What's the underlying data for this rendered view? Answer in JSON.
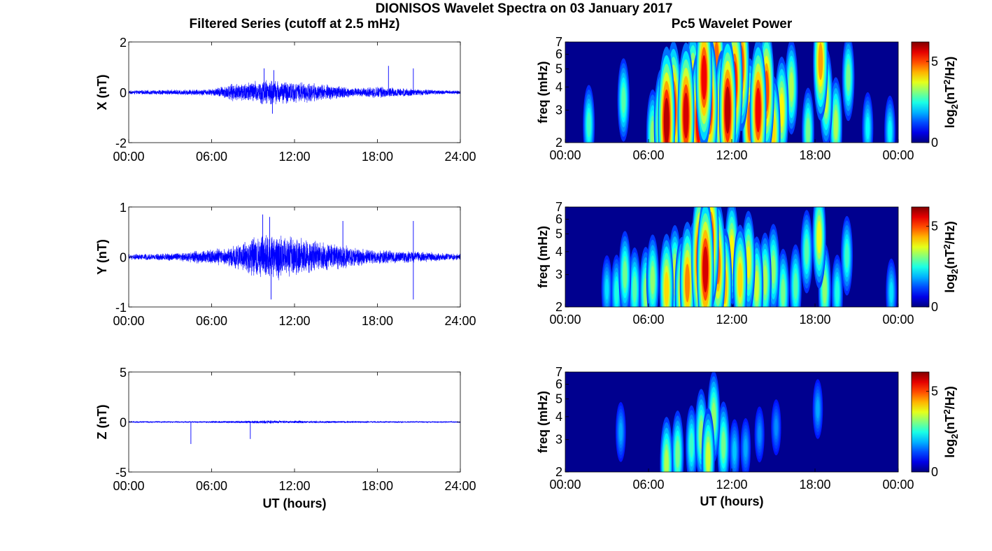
{
  "figure": {
    "title": "DIONISOS Wavelet Spectra on 03 January 2017",
    "left_title": "Filtered Series (cutoff at 2.5 mHz)",
    "right_title": "Pc5 Wavelet Power"
  },
  "colors": {
    "trace": "#0000ff",
    "axis": "#000000",
    "colormap": "jet",
    "background": "#00008f"
  },
  "chart_data": [
    {
      "type": "line",
      "id": "x-series",
      "title": "",
      "ylabel": "X (nT)",
      "xlabel": "",
      "ylim": [
        -2,
        2
      ],
      "yticks": [
        "-2",
        "0",
        "2"
      ],
      "xlim": [
        0,
        24
      ],
      "xticks": [
        "00:00",
        "06:00",
        "12:00",
        "18:00",
        "24:00"
      ],
      "series": [
        {
          "color": "#0000ff",
          "envelope": {
            "t": [
              0,
              2,
              4,
              6,
              7,
              8,
              9,
              10,
              11,
              12,
              13,
              14,
              15,
              16,
              17,
              18,
              19,
              20,
              21,
              22,
              23,
              24
            ],
            "amplitude": [
              0.08,
              0.1,
              0.12,
              0.14,
              0.3,
              0.42,
              0.48,
              0.55,
              0.5,
              0.45,
              0.42,
              0.35,
              0.3,
              0.22,
              0.18,
              0.25,
              0.2,
              0.18,
              0.15,
              0.1,
              0.09,
              0.08
            ]
          },
          "spikes": [
            {
              "t": 9.8,
              "y": 0.95
            },
            {
              "t": 10.5,
              "y": 0.88
            },
            {
              "t": 18.8,
              "y": 1.05
            },
            {
              "t": 20.6,
              "y": 0.95
            },
            {
              "t": 10.4,
              "y": -0.85
            }
          ]
        }
      ]
    },
    {
      "type": "line",
      "id": "y-series",
      "title": "",
      "ylabel": "Y (nT)",
      "xlabel": "",
      "ylim": [
        -1,
        1
      ],
      "yticks": [
        "-1",
        "0",
        "1"
      ],
      "xlim": [
        0,
        24
      ],
      "xticks": [
        "00:00",
        "06:00",
        "12:00",
        "18:00",
        "24:00"
      ],
      "series": [
        {
          "color": "#0000ff",
          "envelope": {
            "t": [
              0,
              2,
              4,
              5,
              6,
              7,
              8,
              9,
              10,
              11,
              12,
              13,
              14,
              15,
              16,
              17,
              18,
              19,
              20,
              21,
              22,
              23,
              24
            ],
            "amplitude": [
              0.06,
              0.07,
              0.1,
              0.14,
              0.16,
              0.2,
              0.28,
              0.4,
              0.5,
              0.48,
              0.42,
              0.36,
              0.32,
              0.28,
              0.22,
              0.18,
              0.15,
              0.14,
              0.13,
              0.12,
              0.1,
              0.08,
              0.07
            ]
          },
          "spikes": [
            {
              "t": 9.7,
              "y": 0.85
            },
            {
              "t": 10.2,
              "y": 0.8
            },
            {
              "t": 10.3,
              "y": -0.85
            },
            {
              "t": 15.5,
              "y": 0.72
            },
            {
              "t": 20.6,
              "y": 0.72
            },
            {
              "t": 20.6,
              "y": -0.85
            }
          ]
        }
      ]
    },
    {
      "type": "line",
      "id": "z-series",
      "title": "",
      "ylabel": "Z (nT)",
      "xlabel": "UT (hours)",
      "ylim": [
        -5,
        5
      ],
      "yticks": [
        "-5",
        "0",
        "5"
      ],
      "xlim": [
        0,
        24
      ],
      "xticks": [
        "00:00",
        "06:00",
        "12:00",
        "18:00",
        "24:00"
      ],
      "series": [
        {
          "color": "#0000ff",
          "envelope": {
            "t": [
              0,
              4,
              8,
              10,
              12,
              16,
              20,
              24
            ],
            "amplitude": [
              0.08,
              0.08,
              0.12,
              0.18,
              0.14,
              0.1,
              0.08,
              0.07
            ]
          },
          "spikes": [
            {
              "t": 4.5,
              "y": -2.2
            },
            {
              "t": 8.8,
              "y": -1.7
            }
          ]
        }
      ]
    },
    {
      "type": "heatmap",
      "id": "x-power",
      "title": "",
      "ylabel": "freq (mHz)",
      "xlabel": "",
      "yscale": "log",
      "ylim": [
        2,
        7
      ],
      "yticks": [
        "2",
        "3",
        "4",
        "5",
        "6",
        "7"
      ],
      "xlim": [
        0,
        24
      ],
      "xticks": [
        "00:00",
        "06:00",
        "12:00",
        "18:00",
        "00:00"
      ],
      "colorbar": {
        "label_base": "log",
        "label_sub": "2",
        "label_unit": "(nT",
        "label_sup": "2",
        "label_tail": "/Hz)",
        "range": [
          0,
          6.2
        ],
        "ticks": [
          "0",
          "5"
        ],
        "tick_values": [
          0,
          5
        ]
      },
      "blobs": [
        {
          "t": 1.7,
          "f": 2.5,
          "p": 2.2
        },
        {
          "t": 4.2,
          "f": 3.4,
          "p": 2.4
        },
        {
          "t": 6.3,
          "f": 2.2,
          "p": 2.8
        },
        {
          "t": 6.9,
          "f": 2.5,
          "p": 3.8
        },
        {
          "t": 7.3,
          "f": 2.6,
          "p": 5.8
        },
        {
          "t": 7.8,
          "f": 3.0,
          "p": 5.2
        },
        {
          "t": 8.2,
          "f": 2.3,
          "p": 5.0
        },
        {
          "t": 8.7,
          "f": 2.8,
          "p": 5.6
        },
        {
          "t": 9.2,
          "f": 3.6,
          "p": 4.8
        },
        {
          "t": 9.6,
          "f": 2.6,
          "p": 5.3
        },
        {
          "t": 10.0,
          "f": 4.5,
          "p": 5.4
        },
        {
          "t": 10.4,
          "f": 3.2,
          "p": 5.2
        },
        {
          "t": 10.9,
          "f": 5.5,
          "p": 4.6
        },
        {
          "t": 11.3,
          "f": 2.8,
          "p": 4.8
        },
        {
          "t": 11.7,
          "f": 3.0,
          "p": 5.8
        },
        {
          "t": 12.2,
          "f": 4.2,
          "p": 5.2
        },
        {
          "t": 12.7,
          "f": 5.2,
          "p": 4.8
        },
        {
          "t": 13.3,
          "f": 2.6,
          "p": 4.6
        },
        {
          "t": 13.9,
          "f": 3.0,
          "p": 5.4
        },
        {
          "t": 14.5,
          "f": 3.8,
          "p": 4.8
        },
        {
          "t": 15.0,
          "f": 2.3,
          "p": 3.8
        },
        {
          "t": 15.6,
          "f": 3.0,
          "p": 3.6
        },
        {
          "t": 16.3,
          "f": 4.0,
          "p": 3.0
        },
        {
          "t": 17.5,
          "f": 2.3,
          "p": 2.6
        },
        {
          "t": 18.4,
          "f": 5.5,
          "p": 4.2
        },
        {
          "t": 18.8,
          "f": 3.5,
          "p": 3.2
        },
        {
          "t": 19.5,
          "f": 2.5,
          "p": 3.0
        },
        {
          "t": 20.4,
          "f": 4.5,
          "p": 2.6
        },
        {
          "t": 21.8,
          "f": 2.4,
          "p": 1.8
        },
        {
          "t": 23.4,
          "f": 2.3,
          "p": 1.8
        }
      ]
    },
    {
      "type": "heatmap",
      "id": "y-power",
      "title": "",
      "ylabel": "freq (mHz)",
      "xlabel": "",
      "yscale": "log",
      "ylim": [
        2,
        7
      ],
      "yticks": [
        "2",
        "3",
        "4",
        "5",
        "6",
        "7"
      ],
      "xlim": [
        0,
        24
      ],
      "xticks": [
        "00:00",
        "06:00",
        "12:00",
        "18:00",
        "00:00"
      ],
      "colorbar": {
        "label_base": "log",
        "label_sub": "2",
        "label_unit": "(nT",
        "label_sup": "2",
        "label_tail": "/Hz)",
        "range": [
          0,
          6.2
        ],
        "ticks": [
          "0",
          "5"
        ],
        "tick_values": [
          0,
          5
        ]
      },
      "blobs": [
        {
          "t": 3.0,
          "f": 2.5,
          "p": 1.6
        },
        {
          "t": 3.7,
          "f": 2.4,
          "p": 2.0
        },
        {
          "t": 4.3,
          "f": 3.0,
          "p": 2.6
        },
        {
          "t": 5.0,
          "f": 2.5,
          "p": 2.4
        },
        {
          "t": 5.8,
          "f": 2.4,
          "p": 2.8
        },
        {
          "t": 6.3,
          "f": 2.8,
          "p": 2.8
        },
        {
          "t": 7.3,
          "f": 2.5,
          "p": 3.8
        },
        {
          "t": 7.9,
          "f": 3.0,
          "p": 3.2
        },
        {
          "t": 8.4,
          "f": 2.4,
          "p": 3.8
        },
        {
          "t": 8.8,
          "f": 2.7,
          "p": 4.4
        },
        {
          "t": 9.3,
          "f": 2.8,
          "p": 4.2
        },
        {
          "t": 9.7,
          "f": 3.6,
          "p": 5.6
        },
        {
          "t": 10.1,
          "f": 3.2,
          "p": 5.6
        },
        {
          "t": 10.5,
          "f": 4.6,
          "p": 5.0
        },
        {
          "t": 11.0,
          "f": 3.4,
          "p": 4.6
        },
        {
          "t": 11.5,
          "f": 2.6,
          "p": 4.0
        },
        {
          "t": 12.0,
          "f": 4.0,
          "p": 3.6
        },
        {
          "t": 12.6,
          "f": 2.8,
          "p": 3.8
        },
        {
          "t": 13.2,
          "f": 3.5,
          "p": 3.4
        },
        {
          "t": 13.8,
          "f": 2.6,
          "p": 3.2
        },
        {
          "t": 14.4,
          "f": 2.8,
          "p": 3.0
        },
        {
          "t": 15.0,
          "f": 3.2,
          "p": 2.8
        },
        {
          "t": 15.7,
          "f": 2.4,
          "p": 2.6
        },
        {
          "t": 16.6,
          "f": 2.6,
          "p": 2.4
        },
        {
          "t": 17.4,
          "f": 4.0,
          "p": 2.4
        },
        {
          "t": 18.3,
          "f": 4.8,
          "p": 3.4
        },
        {
          "t": 18.7,
          "f": 2.5,
          "p": 2.8
        },
        {
          "t": 19.6,
          "f": 2.4,
          "p": 2.0
        },
        {
          "t": 20.3,
          "f": 3.8,
          "p": 2.2
        },
        {
          "t": 23.5,
          "f": 2.4,
          "p": 1.6
        }
      ]
    },
    {
      "type": "heatmap",
      "id": "z-power",
      "title": "",
      "ylabel": "freq (mHz)",
      "xlabel": "UT (hours)",
      "yscale": "log",
      "ylim": [
        2,
        7
      ],
      "yticks": [
        "2",
        "3",
        "4",
        "5",
        "6",
        "7"
      ],
      "xlim": [
        0,
        24
      ],
      "xticks": [
        "00:00",
        "06:00",
        "12:00",
        "18:00",
        "00:00"
      ],
      "colorbar": {
        "label_base": "log",
        "label_sub": "2",
        "label_unit": "(nT",
        "label_sup": "2",
        "label_tail": "/Hz)",
        "range": [
          0,
          6.2
        ],
        "ticks": [
          "0",
          "5"
        ],
        "tick_values": [
          0,
          5
        ]
      },
      "blobs": [
        {
          "t": 4.0,
          "f": 3.3,
          "p": 1.2
        },
        {
          "t": 7.3,
          "f": 2.2,
          "p": 3.0
        },
        {
          "t": 8.1,
          "f": 2.5,
          "p": 2.6
        },
        {
          "t": 9.1,
          "f": 2.8,
          "p": 2.2
        },
        {
          "t": 9.8,
          "f": 3.2,
          "p": 2.8
        },
        {
          "t": 10.3,
          "f": 2.4,
          "p": 3.2
        },
        {
          "t": 10.7,
          "f": 4.0,
          "p": 2.8
        },
        {
          "t": 11.4,
          "f": 2.8,
          "p": 2.6
        },
        {
          "t": 12.2,
          "f": 2.6,
          "p": 1.4
        },
        {
          "t": 13.0,
          "f": 2.7,
          "p": 1.2
        },
        {
          "t": 14.0,
          "f": 3.2,
          "p": 1.0
        },
        {
          "t": 15.2,
          "f": 3.5,
          "p": 1.0
        },
        {
          "t": 18.2,
          "f": 4.4,
          "p": 1.2
        }
      ]
    }
  ]
}
